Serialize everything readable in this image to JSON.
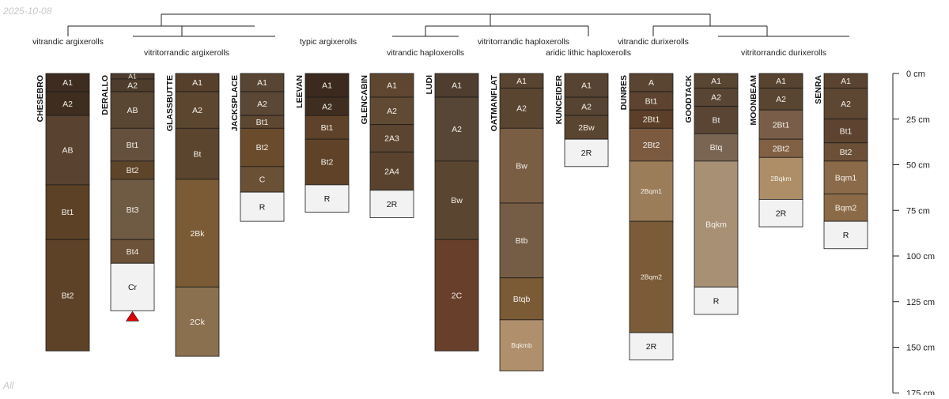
{
  "date_stamp": "2025-10-08",
  "footer_label": "All",
  "chart_data": {
    "type": "soil-profile-sketch",
    "depth_unit": "cm",
    "depth_range": [
      0,
      175
    ],
    "depth_axis_ticks": [
      {
        "value": 0,
        "label": "0 cm"
      },
      {
        "value": 25,
        "label": "25 cm"
      },
      {
        "value": 50,
        "label": "50 cm"
      },
      {
        "value": 75,
        "label": "75 cm"
      },
      {
        "value": 100,
        "label": "100 cm"
      },
      {
        "value": 125,
        "label": "125 cm"
      },
      {
        "value": 150,
        "label": "150 cm"
      },
      {
        "value": 175,
        "label": "175 cm"
      }
    ],
    "taxa": [
      {
        "label": "vitrandic argixerolls",
        "row": 1
      },
      {
        "label": "vitritorrandic argixerolls",
        "row": 2
      },
      {
        "label": "typic argixerolls",
        "row": 1
      },
      {
        "label": "vitrandic haploxerolls",
        "row": 2
      },
      {
        "label": "vitritorrandic haploxerolls",
        "row": 1
      },
      {
        "label": "aridic lithic haploxerolls",
        "row": 2
      },
      {
        "label": "vitrandic durixerolls",
        "row": 1
      },
      {
        "label": "vitritorrandic durixerolls",
        "row": 2
      }
    ],
    "profiles": [
      {
        "name": "CHESEBRO",
        "horizons": [
          {
            "name": "A1",
            "top": 0,
            "bottom": 10,
            "color": "#3d2c1f"
          },
          {
            "name": "A2",
            "top": 10,
            "bottom": 23,
            "color": "#3f2e20"
          },
          {
            "name": "AB",
            "top": 23,
            "bottom": 61,
            "color": "#594330"
          },
          {
            "name": "Bt1",
            "top": 61,
            "bottom": 91,
            "color": "#5c4126"
          },
          {
            "name": "Bt2",
            "top": 91,
            "bottom": 152,
            "color": "#5e4228"
          }
        ]
      },
      {
        "name": "DERALLO",
        "horizons": [
          {
            "name": "A1",
            "top": 0,
            "bottom": 3,
            "color": "#4e3c2c"
          },
          {
            "name": "A2",
            "top": 3,
            "bottom": 10,
            "color": "#4e3c2c"
          },
          {
            "name": "AB",
            "top": 10,
            "bottom": 30,
            "color": "#594633"
          },
          {
            "name": "Bt1",
            "top": 30,
            "bottom": 48,
            "color": "#65503e"
          },
          {
            "name": "Bt2",
            "top": 48,
            "bottom": 58,
            "color": "#5e4529"
          },
          {
            "name": "Bt3",
            "top": 58,
            "bottom": 91,
            "color": "#6f5a44"
          },
          {
            "name": "Bt4",
            "top": 91,
            "bottom": 104,
            "color": "#6b5238"
          },
          {
            "name": "Cr",
            "top": 104,
            "bottom": 130,
            "color": "#f2f2f2"
          }
        ],
        "marker": "red-triangle"
      },
      {
        "name": "GLASSBUTTE",
        "horizons": [
          {
            "name": "A1",
            "top": 0,
            "bottom": 10,
            "color": "#56402c"
          },
          {
            "name": "A2",
            "top": 10,
            "bottom": 30,
            "color": "#5d4630"
          },
          {
            "name": "Bt",
            "top": 30,
            "bottom": 58,
            "color": "#5b452f"
          },
          {
            "name": "2Bk",
            "top": 58,
            "bottom": 117,
            "color": "#7a5b35"
          },
          {
            "name": "2Ck",
            "top": 117,
            "bottom": 155,
            "color": "#8b7050"
          }
        ]
      },
      {
        "name": "JACKSPLACE",
        "horizons": [
          {
            "name": "A1",
            "top": 0,
            "bottom": 10,
            "color": "#594533"
          },
          {
            "name": "A2",
            "top": 10,
            "bottom": 23,
            "color": "#5b4735"
          },
          {
            "name": "Bt1",
            "top": 23,
            "bottom": 30,
            "color": "#5e4730"
          },
          {
            "name": "Bt2",
            "top": 30,
            "bottom": 51,
            "color": "#6a4c2c"
          },
          {
            "name": "C",
            "top": 51,
            "bottom": 65,
            "color": "#6a5034"
          },
          {
            "name": "R",
            "top": 65,
            "bottom": 81,
            "color": "#f2f2f2"
          }
        ]
      },
      {
        "name": "LEEVAN",
        "horizons": [
          {
            "name": "A1",
            "top": 0,
            "bottom": 13,
            "color": "#3b2a1d"
          },
          {
            "name": "A2",
            "top": 13,
            "bottom": 23,
            "color": "#3f2e20"
          },
          {
            "name": "Bt1",
            "top": 23,
            "bottom": 36,
            "color": "#5e4229"
          },
          {
            "name": "Bt2",
            "top": 36,
            "bottom": 61,
            "color": "#5f4228"
          },
          {
            "name": "R",
            "top": 61,
            "bottom": 76,
            "color": "#f2f2f2"
          }
        ]
      },
      {
        "name": "GLENCABIN",
        "horizons": [
          {
            "name": "A1",
            "top": 0,
            "bottom": 13,
            "color": "#5e4630"
          },
          {
            "name": "A2",
            "top": 13,
            "bottom": 28,
            "color": "#614a33"
          },
          {
            "name": "2A3",
            "top": 28,
            "bottom": 43,
            "color": "#5c4530"
          },
          {
            "name": "2A4",
            "top": 43,
            "bottom": 64,
            "color": "#5a432e"
          },
          {
            "name": "2R",
            "top": 64,
            "bottom": 79,
            "color": "#f2f2f2"
          }
        ]
      },
      {
        "name": "LUDI",
        "horizons": [
          {
            "name": "A1",
            "top": 0,
            "bottom": 13,
            "color": "#4f3e30"
          },
          {
            "name": "A2",
            "top": 13,
            "bottom": 48,
            "color": "#574636"
          },
          {
            "name": "Bw",
            "top": 48,
            "bottom": 91,
            "color": "#5a4530"
          },
          {
            "name": "2C",
            "top": 91,
            "bottom": 152,
            "color": "#683f2a"
          }
        ]
      },
      {
        "name": "OATMANFLAT",
        "horizons": [
          {
            "name": "A1",
            "top": 0,
            "bottom": 8,
            "color": "#584430"
          },
          {
            "name": "A2",
            "top": 8,
            "bottom": 30,
            "color": "#5a4531"
          },
          {
            "name": "Bw",
            "top": 30,
            "bottom": 71,
            "color": "#7a5e44"
          },
          {
            "name": "Btb",
            "top": 71,
            "bottom": 112,
            "color": "#755d45"
          },
          {
            "name": "Btqb",
            "top": 112,
            "bottom": 135,
            "color": "#7b5a36"
          },
          {
            "name": "Bqkmb",
            "top": 135,
            "bottom": 163,
            "color": "#b0906c"
          }
        ]
      },
      {
        "name": "KUNCEIDER",
        "horizons": [
          {
            "name": "A1",
            "top": 0,
            "bottom": 13,
            "color": "#574331"
          },
          {
            "name": "A2",
            "top": 13,
            "bottom": 23,
            "color": "#574331"
          },
          {
            "name": "2Bw",
            "top": 23,
            "bottom": 36,
            "color": "#5a4530"
          },
          {
            "name": "2R",
            "top": 36,
            "bottom": 51,
            "color": "#f2f2f2"
          }
        ]
      },
      {
        "name": "DUNRES",
        "horizons": [
          {
            "name": "A",
            "top": 0,
            "bottom": 10,
            "color": "#5a4432"
          },
          {
            "name": "Bt1",
            "top": 10,
            "bottom": 20,
            "color": "#5e4430"
          },
          {
            "name": "2Bt1",
            "top": 20,
            "bottom": 30,
            "color": "#5c3f28"
          },
          {
            "name": "2Bt2",
            "top": 30,
            "bottom": 48,
            "color": "#7b5a40"
          },
          {
            "name": "2Bqm1",
            "top": 48,
            "bottom": 81,
            "color": "#9c7d5a"
          },
          {
            "name": "2Bqm2",
            "top": 81,
            "bottom": 142,
            "color": "#7b5b38"
          },
          {
            "name": "2R",
            "top": 142,
            "bottom": 157,
            "color": "#f2f2f2"
          }
        ]
      },
      {
        "name": "GOODTACK",
        "horizons": [
          {
            "name": "A1",
            "top": 0,
            "bottom": 8,
            "color": "#584532"
          },
          {
            "name": "A2",
            "top": 8,
            "bottom": 18,
            "color": "#594533"
          },
          {
            "name": "Bt",
            "top": 18,
            "bottom": 33,
            "color": "#5a4535"
          },
          {
            "name": "Btq",
            "top": 33,
            "bottom": 48,
            "color": "#7a6553"
          },
          {
            "name": "Bqkm",
            "top": 48,
            "bottom": 117,
            "color": "#a89075"
          },
          {
            "name": "R",
            "top": 117,
            "bottom": 132,
            "color": "#f2f2f2"
          }
        ]
      },
      {
        "name": "MOONBEAM",
        "horizons": [
          {
            "name": "A1",
            "top": 0,
            "bottom": 8,
            "color": "#574330"
          },
          {
            "name": "A2",
            "top": 8,
            "bottom": 20,
            "color": "#594531"
          },
          {
            "name": "2Bt1",
            "top": 20,
            "bottom": 36,
            "color": "#7a5d48"
          },
          {
            "name": "2Bt2",
            "top": 36,
            "bottom": 46,
            "color": "#826044"
          },
          {
            "name": "2Bqkm",
            "top": 46,
            "bottom": 69,
            "color": "#ad8e66"
          },
          {
            "name": "2R",
            "top": 69,
            "bottom": 84,
            "color": "#f2f2f2"
          }
        ]
      },
      {
        "name": "SENRA",
        "horizons": [
          {
            "name": "A1",
            "top": 0,
            "bottom": 8,
            "color": "#5a4431"
          },
          {
            "name": "A2",
            "top": 8,
            "bottom": 25,
            "color": "#5d4632"
          },
          {
            "name": "Bt1",
            "top": 25,
            "bottom": 38,
            "color": "#5e4430"
          },
          {
            "name": "Bt2",
            "top": 38,
            "bottom": 48,
            "color": "#6b5037"
          },
          {
            "name": "Bqm1",
            "top": 48,
            "bottom": 66,
            "color": "#8a6a48"
          },
          {
            "name": "Bqm2",
            "top": 66,
            "bottom": 81,
            "color": "#8b6b47"
          },
          {
            "name": "R",
            "top": 81,
            "bottom": 96,
            "color": "#f2f2f2"
          }
        ]
      }
    ]
  }
}
